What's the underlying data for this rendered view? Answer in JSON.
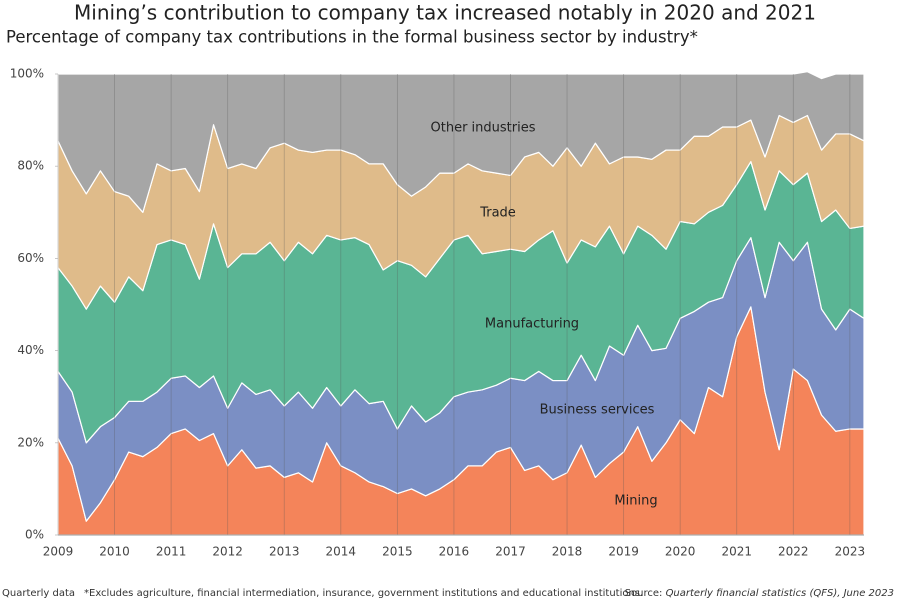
{
  "chart_data": {
    "type": "stacked_area",
    "title": "Mining’s contribution to company tax increased notably in 2020 and 2021",
    "subtitle": "Percentage of company tax contributions in the formal business sector by industry*",
    "x": [
      2009,
      2009.25,
      2009.5,
      2009.75,
      2010,
      2010.25,
      2010.5,
      2010.75,
      2011,
      2011.25,
      2011.5,
      2011.75,
      2012,
      2012.25,
      2012.5,
      2012.75,
      2013,
      2013.25,
      2013.5,
      2013.75,
      2014,
      2014.25,
      2014.5,
      2014.75,
      2015,
      2015.25,
      2015.5,
      2015.75,
      2016,
      2016.25,
      2016.5,
      2016.75,
      2017,
      2017.25,
      2017.5,
      2017.75,
      2018,
      2018.25,
      2018.5,
      2018.75,
      2019,
      2019.25,
      2019.5,
      2019.75,
      2020,
      2020.25,
      2020.5,
      2020.75,
      2021,
      2021.25,
      2021.5,
      2021.75,
      2022,
      2022.25,
      2022.5,
      2022.75,
      2023,
      2023.25
    ],
    "series": [
      {
        "name": "Mining",
        "color": "#f4845a",
        "values": [
          21,
          15,
          3,
          7,
          12,
          18,
          17,
          19,
          22,
          23,
          20.5,
          22,
          15,
          18.5,
          14.5,
          15,
          12.5,
          13.5,
          11.5,
          20,
          15,
          13.5,
          11.5,
          10.5,
          9,
          10,
          8.5,
          10,
          12,
          15,
          15,
          18,
          19,
          14,
          15,
          12,
          13.5,
          19.5,
          12.5,
          15.5,
          18,
          23.5,
          16,
          20,
          25,
          22,
          32,
          30,
          43,
          49.5,
          31,
          18.5,
          36,
          33.5,
          26,
          22.5,
          23,
          23
        ]
      },
      {
        "name": "Business services",
        "color": "#7b8fc4",
        "values": [
          14.5,
          16,
          17,
          16.5,
          13.5,
          11,
          12,
          12,
          12,
          11.5,
          11.5,
          12.5,
          12.5,
          14.5,
          16,
          16.5,
          15.5,
          17.5,
          16,
          12,
          13,
          18,
          17,
          18.5,
          14,
          18,
          16,
          16.5,
          18,
          16,
          16.5,
          14.5,
          15,
          19.5,
          20.5,
          21.5,
          20,
          19.5,
          21,
          25.5,
          21,
          22,
          24,
          20.5,
          22,
          26.5,
          18.5,
          21.5,
          16.5,
          15,
          20.5,
          45,
          23.5,
          30,
          23,
          22,
          26,
          24
        ]
      },
      {
        "name": "Manufacturing",
        "color": "#5ab594",
        "values": [
          22.5,
          23,
          29,
          30.5,
          25,
          27,
          24,
          32,
          30,
          28.5,
          23.5,
          33,
          30.5,
          28,
          30.5,
          32,
          31.5,
          32.5,
          33.5,
          33,
          36,
          33,
          34.5,
          28.5,
          36.5,
          30.5,
          31.5,
          33.5,
          34,
          34,
          29.5,
          29,
          28,
          28,
          28.5,
          32.5,
          25.5,
          25,
          29,
          26,
          22,
          21.5,
          25,
          21.5,
          21,
          19,
          19.5,
          20,
          16.5,
          16.5,
          19,
          15.5,
          16.5,
          15,
          19,
          26,
          17.5,
          20
        ]
      },
      {
        "name": "Trade",
        "color": "#dfbb8a",
        "values": [
          27.5,
          25,
          25,
          25,
          24,
          17.5,
          17,
          17.5,
          15,
          16.5,
          19,
          21.5,
          21.5,
          19.5,
          18.5,
          20.5,
          25.5,
          20,
          22,
          18.5,
          19.5,
          18,
          17.5,
          23,
          16.5,
          15,
          19.5,
          18.5,
          14.5,
          15.5,
          18,
          17,
          16,
          20.5,
          19,
          14,
          25,
          16,
          22.5,
          13.5,
          21,
          15,
          16.5,
          21.5,
          15.5,
          19,
          16.5,
          17,
          12.5,
          9,
          11.5,
          12,
          13.5,
          12.5,
          15.5,
          16.5,
          20.5,
          18.5
        ]
      },
      {
        "name": "Other industries",
        "color": "#a6a6a6",
        "values": [
          14.5,
          21,
          26,
          21,
          25.5,
          26.5,
          30,
          19.5,
          21,
          20.5,
          25.5,
          11,
          20.5,
          19.5,
          20.5,
          16,
          15,
          16.5,
          17,
          16.5,
          16.5,
          17.5,
          19.5,
          19.5,
          24,
          26.5,
          24.5,
          21.5,
          21.5,
          19.5,
          21,
          21.5,
          22,
          18,
          17,
          20,
          16,
          20,
          15,
          19.5,
          18,
          18,
          18.5,
          16.5,
          16.5,
          13.5,
          13.5,
          11.5,
          11.5,
          10,
          18,
          9,
          10.5,
          9.5,
          15.5,
          13,
          13,
          14.5
        ]
      }
    ],
    "xlim": [
      2009,
      2023.25
    ],
    "xticks": [
      2009,
      2010,
      2011,
      2012,
      2013,
      2014,
      2015,
      2016,
      2017,
      2018,
      2019,
      2020,
      2021,
      2022,
      2023
    ],
    "ylim": [
      0,
      100
    ],
    "yticks": [
      {
        "value": 0,
        "label": "0%"
      },
      {
        "value": 20,
        "label": "20%"
      },
      {
        "value": 40,
        "label": "40%"
      },
      {
        "value": 60,
        "label": "60%"
      },
      {
        "value": 80,
        "label": "80%"
      },
      {
        "value": 100,
        "label": "100%"
      }
    ],
    "grid": true,
    "footer": {
      "frequency": "Quarterly data",
      "note": "*Excludes agriculture, financial intermediation, insurance, government institutions and educational institutions.",
      "source_prefix": "Source:",
      "source_title": "Quarterly financial statistics (QFS), June 2023"
    }
  }
}
